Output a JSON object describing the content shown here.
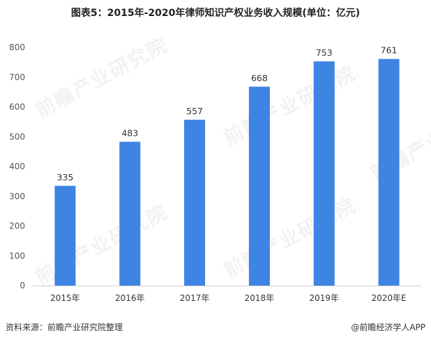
{
  "chart_data": {
    "type": "bar",
    "title": "图表5：2015年-2020年律师知识产权业务收入规模(单位：亿元)",
    "categories": [
      "2015年",
      "2016年",
      "2017年",
      "2018年",
      "2019年",
      "2020年E"
    ],
    "values": [
      335,
      483,
      557,
      668,
      753,
      761
    ],
    "ylim": [
      0,
      800
    ],
    "yticks": [
      0,
      100,
      200,
      300,
      400,
      500,
      600,
      700,
      800
    ],
    "grid": false,
    "bar_color": "#3d84e3"
  },
  "footer": {
    "source": "资料来源：前瞻产业研究院整理",
    "brand": "@前瞻经济学人APP"
  },
  "watermark": "前瞻产业研究院"
}
